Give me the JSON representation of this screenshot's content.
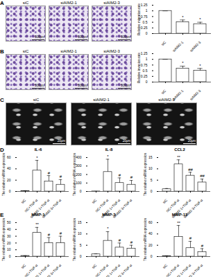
{
  "image_panels": [
    {
      "panel_label": "A",
      "images": [
        {
          "label": "siC",
          "scale_bar": "500μm"
        },
        {
          "label": "siAIM2-1",
          "scale_bar": "500μm"
        },
        {
          "label": "siAIM2-3",
          "scale_bar": "500μm"
        }
      ]
    },
    {
      "panel_label": "B",
      "images": [
        {
          "label": "siC",
          "scale_bar": "500μm"
        },
        {
          "label": "siAIM2-1",
          "scale_bar": "500μm"
        },
        {
          "label": "siAIM2-3",
          "scale_bar": "500μm"
        }
      ]
    },
    {
      "panel_label": "C",
      "images": [
        {
          "label": "siC",
          "scale_bar": "20μm"
        },
        {
          "label": "siAIM2-1",
          "scale_bar": "20μm"
        },
        {
          "label": "siAIM2-3",
          "scale_bar": "20μm"
        }
      ]
    }
  ],
  "chart_data": [
    {
      "type": "bar",
      "y_label": "Relative migration rate",
      "categories": [
        "siC",
        "siAIM2-1",
        "siAIM2-3"
      ],
      "values": [
        1,
        0.5,
        0.42
      ],
      "errors": [
        0,
        0.1,
        0.08
      ],
      "annotations": [
        null,
        "*",
        "*"
      ],
      "color": "#ffffff",
      "ylim": [
        0,
        1.25
      ],
      "yticks": [
        0,
        0.25,
        0.5,
        0.75,
        1,
        1.25
      ]
    },
    {
      "type": "bar",
      "y_label": "Relative invasion rate",
      "categories": [
        "siC",
        "siAIM2-1",
        "siAIM2-3"
      ],
      "values": [
        1,
        0.6,
        0.5
      ],
      "errors": [
        0,
        0.1,
        0.1
      ],
      "annotations": [
        null,
        "*",
        "*"
      ],
      "color": "#ffffff",
      "ylim": [
        0,
        1.25
      ],
      "yticks": [
        0,
        0.25,
        0.5,
        0.75,
        1,
        1.25
      ]
    },
    {
      "type": "bar",
      "panel_label": "D",
      "title": "IL-6",
      "y_label": "The relative mRNA expression",
      "categories": [
        "siC",
        "siC+TNF-α",
        "siAIM2-1+TNF-α",
        "siAIM2-3+TNF-α"
      ],
      "values": [
        1,
        37,
        18,
        12
      ],
      "errors": [
        0.3,
        18,
        10,
        9
      ],
      "annotations": [
        null,
        "*",
        "#",
        "#"
      ],
      "color": "#ffffff",
      "ylim": [
        0,
        60
      ],
      "yticks": [
        0,
        20,
        40,
        60
      ]
    },
    {
      "type": "bar",
      "title": "IL-8",
      "y_label": "The relative mRNA expression",
      "categories": [
        "siC",
        "siC+TNF-α",
        "siAIM2-1+TNF-α",
        "siAIM2-3+TNF-α"
      ],
      "values": [
        1,
        230,
        100,
        80
      ],
      "errors": [
        0.5,
        150,
        60,
        50
      ],
      "annotations": [
        null,
        "*",
        "#",
        "#"
      ],
      "color": "#ffffff",
      "ylim": [
        0,
        400
      ],
      "yticks": [
        0,
        100,
        200,
        300,
        400
      ]
    },
    {
      "type": "bar",
      "title": "CCL2",
      "y_label": "The relative mRNA expression",
      "categories": [
        "siC",
        "siC+TNF-α",
        "siAIM2-1+TNF-α",
        "siAIM2-3+TNF-α"
      ],
      "values": [
        1,
        12,
        7,
        4
      ],
      "errors": [
        0.3,
        2,
        1.5,
        1.5
      ],
      "annotations": [
        null,
        "**",
        "##",
        "##"
      ],
      "color": "#ffffff",
      "ylim": [
        0,
        15
      ],
      "yticks": [
        0,
        5,
        10,
        15
      ]
    },
    {
      "type": "bar",
      "panel_label": "E",
      "title": "MMP-1",
      "y_label": "The relative mRNA expression",
      "categories": [
        "siC",
        "siC+TNF-α",
        "siAIM2-1+TNF-α",
        "siAIM2-3+TNF-α"
      ],
      "values": [
        1,
        35,
        20,
        20
      ],
      "errors": [
        0.2,
        8,
        8,
        10
      ],
      "annotations": [
        null,
        "**",
        "#",
        "#"
      ],
      "color": "#ffffff",
      "ylim": [
        0,
        50
      ],
      "yticks": [
        0,
        10,
        20,
        30,
        40,
        50
      ]
    },
    {
      "type": "bar",
      "title": "MMP-3",
      "y_label": "The relative mRNA expression",
      "categories": [
        "siC",
        "siC+TNF-α",
        "siAIM2-1+TNF-α",
        "siAIM2-3+TNF-α"
      ],
      "values": [
        1,
        7,
        4,
        3.5
      ],
      "errors": [
        0.2,
        4,
        2,
        1.5
      ],
      "annotations": [
        null,
        "*",
        "#",
        "#"
      ],
      "color": "#ffffff",
      "ylim": [
        0,
        15
      ],
      "yticks": [
        0,
        5,
        10,
        15
      ]
    },
    {
      "type": "bar",
      "title": "MMP-13",
      "y_label": "The relative mRNA expression",
      "categories": [
        "siC",
        "siC+TNF-α",
        "siAIM2-1+TNF-α",
        "siAIM2-3+TNF-α"
      ],
      "values": [
        1,
        35,
        15,
        8
      ],
      "errors": [
        0.3,
        20,
        12,
        6
      ],
      "annotations": [
        null,
        "**",
        "#",
        "#"
      ],
      "color": "#ffffff",
      "ylim": [
        0,
        60
      ],
      "yticks": [
        0,
        20,
        40,
        60
      ]
    }
  ]
}
